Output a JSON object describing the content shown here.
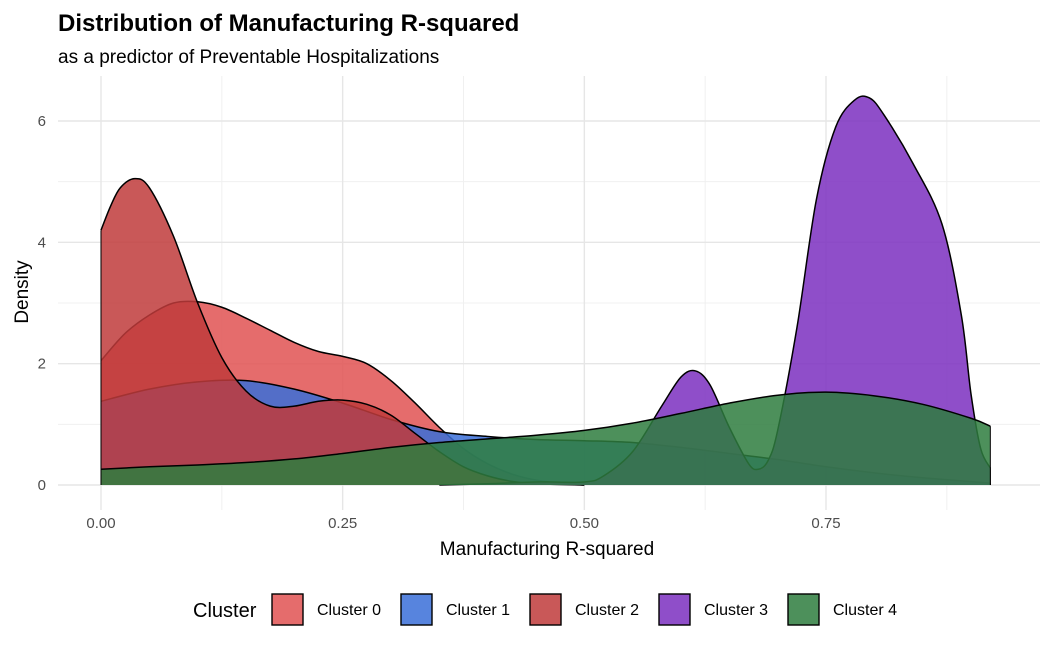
{
  "chart_data": {
    "type": "area",
    "subtype": "density",
    "title": "Distribution of Manufacturing R-squared",
    "subtitle": "as a predictor of Preventable Hospitalizations",
    "xlabel": "Manufacturing R-squared",
    "ylabel": "Density",
    "xlim": [
      0.0,
      0.92
    ],
    "ylim": [
      0,
      6.4
    ],
    "xticks": [
      0.0,
      0.25,
      0.5,
      0.75
    ],
    "xtick_labels": [
      "0.00",
      "0.25",
      "0.50",
      "0.75"
    ],
    "yticks": [
      0,
      2,
      4,
      6
    ],
    "ytick_labels": [
      "0",
      "2",
      "4",
      "6"
    ],
    "grid": true,
    "legend": {
      "title": "Cluster",
      "position": "bottom"
    },
    "series": [
      {
        "name": "Cluster 0",
        "color": "#e05252",
        "x": [
          0.0,
          0.025,
          0.05,
          0.075,
          0.1,
          0.125,
          0.15,
          0.175,
          0.2,
          0.225,
          0.25,
          0.275,
          0.3,
          0.325,
          0.35,
          0.375,
          0.4,
          0.425,
          0.45,
          0.475,
          0.5
        ],
        "y": [
          2.05,
          2.5,
          2.8,
          3.0,
          3.02,
          2.93,
          2.75,
          2.55,
          2.35,
          2.2,
          2.12,
          2.0,
          1.72,
          1.35,
          0.95,
          0.6,
          0.35,
          0.18,
          0.08,
          0.03,
          0.0
        ]
      },
      {
        "name": "Cluster 1",
        "color": "#3a6fd8",
        "x": [
          0.0,
          0.05,
          0.1,
          0.15,
          0.2,
          0.25,
          0.3,
          0.35,
          0.4,
          0.45,
          0.5,
          0.55,
          0.6,
          0.65,
          0.7,
          0.75,
          0.8,
          0.85,
          0.92
        ],
        "y": [
          1.38,
          1.58,
          1.7,
          1.72,
          1.58,
          1.35,
          1.08,
          0.88,
          0.8,
          0.75,
          0.73,
          0.7,
          0.62,
          0.52,
          0.42,
          0.3,
          0.2,
          0.12,
          0.03
        ]
      },
      {
        "name": "Cluster 2",
        "color": "#c03b3b",
        "x": [
          0.0,
          0.01,
          0.02,
          0.035,
          0.05,
          0.075,
          0.1,
          0.125,
          0.15,
          0.175,
          0.2,
          0.225,
          0.25,
          0.275,
          0.3,
          0.325,
          0.35,
          0.375,
          0.4,
          0.425,
          0.45,
          0.5
        ],
        "y": [
          4.2,
          4.6,
          4.9,
          5.05,
          4.9,
          4.1,
          3.0,
          2.1,
          1.55,
          1.3,
          1.3,
          1.38,
          1.4,
          1.33,
          1.15,
          0.85,
          0.55,
          0.3,
          0.15,
          0.06,
          0.02,
          0.0
        ]
      },
      {
        "name": "Cluster 3",
        "color": "#7b2fbf",
        "x": [
          0.35,
          0.4,
          0.45,
          0.5,
          0.52,
          0.55,
          0.58,
          0.6,
          0.615,
          0.63,
          0.65,
          0.67,
          0.68,
          0.69,
          0.7,
          0.72,
          0.74,
          0.76,
          0.78,
          0.795,
          0.81,
          0.84,
          0.87,
          0.89,
          0.9,
          0.91,
          0.92
        ],
        "y": [
          0.0,
          0.02,
          0.05,
          0.05,
          0.15,
          0.55,
          1.3,
          1.78,
          1.88,
          1.65,
          0.95,
          0.35,
          0.26,
          0.4,
          0.9,
          2.6,
          4.7,
          5.9,
          6.35,
          6.38,
          6.1,
          5.3,
          4.3,
          2.8,
          1.5,
          0.6,
          0.28
        ]
      },
      {
        "name": "Cluster 4",
        "color": "#2e7d3e",
        "x": [
          0.0,
          0.05,
          0.1,
          0.15,
          0.2,
          0.25,
          0.3,
          0.35,
          0.4,
          0.45,
          0.5,
          0.55,
          0.6,
          0.65,
          0.7,
          0.75,
          0.8,
          0.85,
          0.9,
          0.92
        ],
        "y": [
          0.26,
          0.3,
          0.33,
          0.37,
          0.43,
          0.52,
          0.62,
          0.7,
          0.76,
          0.82,
          0.9,
          1.02,
          1.18,
          1.35,
          1.48,
          1.53,
          1.47,
          1.33,
          1.1,
          0.97
        ]
      }
    ]
  }
}
